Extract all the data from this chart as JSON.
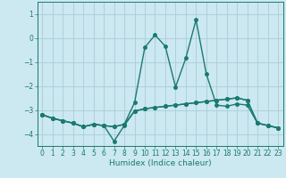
{
  "xlabel": "Humidex (Indice chaleur)",
  "bg_color": "#cce8f0",
  "grid_color": "#aacdd8",
  "line_color": "#1a7a6e",
  "xlim": [
    -0.5,
    23.5
  ],
  "ylim": [
    -4.5,
    1.5
  ],
  "yticks": [
    -4,
    -3,
    -2,
    -1,
    0,
    1
  ],
  "xticks": [
    0,
    1,
    2,
    3,
    4,
    5,
    6,
    7,
    8,
    9,
    10,
    11,
    12,
    13,
    14,
    15,
    16,
    17,
    18,
    19,
    20,
    21,
    22,
    23
  ],
  "series1_x": [
    0,
    1,
    2,
    3,
    4,
    5,
    6,
    7,
    8,
    9,
    10,
    11,
    12,
    13,
    14,
    15,
    16,
    17,
    18,
    19,
    20,
    21,
    22,
    23
  ],
  "series1_y": [
    -3.2,
    -3.35,
    -3.45,
    -3.55,
    -3.7,
    -3.6,
    -3.65,
    -4.3,
    -3.65,
    -3.05,
    -2.95,
    -2.9,
    -2.85,
    -2.8,
    -2.75,
    -2.7,
    -2.65,
    -2.6,
    -2.55,
    -2.5,
    -2.6,
    -3.55,
    -3.65,
    -3.75
  ],
  "series2_x": [
    0,
    1,
    2,
    3,
    4,
    5,
    6,
    7,
    8,
    9,
    10,
    11,
    12,
    13,
    14,
    15,
    16,
    17,
    18,
    19,
    20,
    21,
    22,
    23
  ],
  "series2_y": [
    -3.2,
    -3.35,
    -3.45,
    -3.55,
    -3.7,
    -3.6,
    -3.65,
    -3.7,
    -3.6,
    -2.7,
    -0.4,
    0.12,
    -0.35,
    -2.05,
    -0.85,
    0.75,
    -1.5,
    -2.8,
    -2.85,
    -2.75,
    -2.8,
    -3.55,
    -3.65,
    -3.75
  ],
  "series3_x": [
    0,
    1,
    2,
    3,
    4,
    5,
    6,
    7,
    8,
    9,
    10,
    11,
    12,
    13,
    14,
    15,
    16,
    17,
    18,
    19,
    20,
    21,
    22,
    23
  ],
  "series3_y": [
    -3.2,
    -3.35,
    -3.45,
    -3.55,
    -3.7,
    -3.6,
    -3.65,
    -3.7,
    -3.6,
    -3.05,
    -2.95,
    -2.9,
    -2.85,
    -2.8,
    -2.75,
    -2.7,
    -2.65,
    -2.6,
    -2.55,
    -2.5,
    -2.6,
    -3.55,
    -3.65,
    -3.75
  ],
  "marker_size": 2.5,
  "line_width": 1.0
}
